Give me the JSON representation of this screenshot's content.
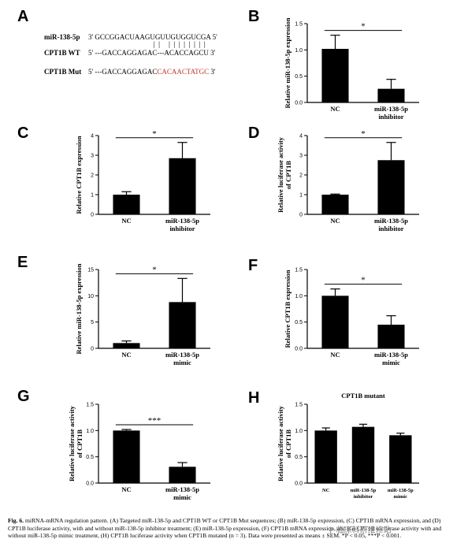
{
  "panels": {
    "A": "A",
    "B": "B",
    "C": "C",
    "D": "D",
    "E": "E",
    "F": "F",
    "G": "G",
    "H": "H"
  },
  "sequences": {
    "mir_label": "miR-138-5p",
    "mir_seq": "3' GCCGGACUAAGUGUUGUGGUCGA 5'",
    "pairing": "|| ||||||||",
    "wt_label": "CPT1B WT",
    "wt_seq": "5' ---GACCAGGAGAC---ACACCAGCU 3'",
    "mut_label": "CPT1B Mut",
    "mut_seq_prefix": "5' ---GACCAGGAGAC",
    "mut_seq_mutated": "CACAACTATGC",
    "mut_seq_suffix": " 3'"
  },
  "chart_data": [
    {
      "id": "B",
      "type": "bar",
      "categories": [
        "NC",
        "miR-138-5p\ninhibitor"
      ],
      "values": [
        1.02,
        0.26
      ],
      "errors": [
        0.26,
        0.18
      ],
      "ylabel": "Relative miR-138-5p expression",
      "ylim": [
        0,
        1.5
      ],
      "yticks": [
        "0.0",
        "0.5",
        "1.0",
        "1.5"
      ],
      "significance": "*"
    },
    {
      "id": "C",
      "type": "bar",
      "categories": [
        "NC",
        "miR-138-5p\ninhibitor"
      ],
      "values": [
        1.0,
        2.85
      ],
      "errors": [
        0.15,
        0.8
      ],
      "ylabel": "Relative CPT1B expression",
      "ylim": [
        0,
        4
      ],
      "yticks": [
        "0",
        "1",
        "2",
        "3",
        "4"
      ],
      "significance": "*"
    },
    {
      "id": "D",
      "type": "bar",
      "categories": [
        "NC",
        "miR-138-5p\ninhibitor"
      ],
      "values": [
        1.0,
        2.75
      ],
      "errors": [
        0.03,
        0.9
      ],
      "ylabel": "Relative luciferase activity\nof CPT1B",
      "ylim": [
        0,
        4
      ],
      "yticks": [
        "0",
        "1",
        "2",
        "3",
        "4"
      ],
      "significance": "*"
    },
    {
      "id": "E",
      "type": "bar",
      "categories": [
        "NC",
        "miR-138-5p\nmimic"
      ],
      "values": [
        1.0,
        8.8
      ],
      "errors": [
        0.4,
        4.5
      ],
      "ylabel": "Relative miR-138-5p expression",
      "ylim": [
        0,
        15
      ],
      "yticks": [
        "0",
        "5",
        "10",
        "15"
      ],
      "significance": "*"
    },
    {
      "id": "F",
      "type": "bar",
      "categories": [
        "NC",
        "miR-138-5p\nmimic"
      ],
      "values": [
        1.0,
        0.45
      ],
      "errors": [
        0.13,
        0.17
      ],
      "ylabel": "Relative CPT1B expression",
      "ylim": [
        0,
        1.5
      ],
      "yticks": [
        "0.0",
        "0.5",
        "1.0",
        "1.5"
      ],
      "significance": "*"
    },
    {
      "id": "G",
      "type": "bar",
      "categories": [
        "NC",
        "miR-138-5p\nmimic"
      ],
      "values": [
        1.0,
        0.31
      ],
      "errors": [
        0.02,
        0.08
      ],
      "ylabel": "Relative luciferase activity\nof CPT1B",
      "ylim": [
        0,
        1.5
      ],
      "yticks": [
        "0.0",
        "0.5",
        "1.0",
        "1.5"
      ],
      "significance": "***"
    },
    {
      "id": "H",
      "type": "bar",
      "title": "CPT1B mutant",
      "categories": [
        "NC",
        "miR-138-5p\ninhibitor",
        "miR-138-5p\nmimic"
      ],
      "values": [
        1.0,
        1.07,
        0.91
      ],
      "errors": [
        0.05,
        0.05,
        0.04
      ],
      "ylabel": "Relative luciferase activity\nof CPT1B",
      "ylim": [
        0,
        1.5
      ],
      "yticks": [
        "0.0",
        "0.5",
        "1.0",
        "1.5"
      ],
      "significance": ""
    }
  ],
  "caption": {
    "lead": "Fig. 6.",
    "text": " miRNA-mRNA regulation pattern. (A) Targeted miR-138-5p and CPT1B WT or CPT1B Mut sequences; (B) miR-138-5p expression, (C) CPT1B mRNA expression, and (D) CPT1B luciferase activity, with and without miR-138-5p inhibitor treatment; (E) miR-138-5p expression, (F) CPT1B mRNA expression, and (G) CPT1B luciferase activity with and without miR-138-5p mimic treatment, (H) CPT1B luciferase activity when CPT1B mutated (n = 3). Data were presented as means ± SEM. *P < 0.05, ***P < 0.001."
  },
  "watermark": "⚲ 临床科研维修站"
}
